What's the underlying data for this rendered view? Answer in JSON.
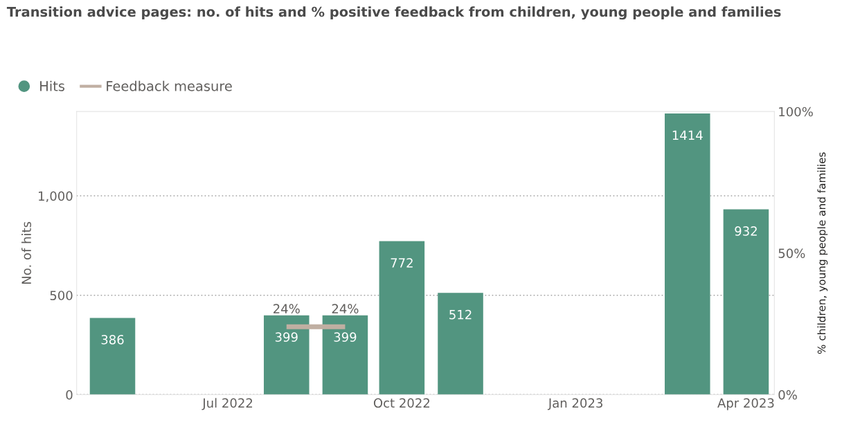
{
  "chart_data": {
    "type": "bar",
    "title": "Transition advice pages: no. of hits and % positive feedback from children, young people and families",
    "x": [
      "2022-05",
      "2022-08",
      "2022-09",
      "2022-10",
      "2022-11",
      "2023-03",
      "2023-04"
    ],
    "series": [
      {
        "name": "Hits",
        "color": "#529580",
        "values": [
          386,
          399,
          399,
          772,
          512,
          1414,
          932
        ],
        "value_labels": [
          "386",
          "399",
          "399",
          "772",
          "512",
          "1414",
          "932"
        ]
      },
      {
        "name": "Feedback measure",
        "type": "line",
        "axis": "y2",
        "color": "#c0afa2",
        "x": [
          "2022-08",
          "2022-09"
        ],
        "values": [
          24,
          24
        ],
        "value_labels": [
          "24%",
          "24%"
        ]
      }
    ],
    "xlim": [
      "2022-04-12",
      "2023-04-16"
    ],
    "xticks": [
      {
        "value": "2022-07",
        "label": "Jul 2022"
      },
      {
        "value": "2022-10",
        "label": "Oct 2022"
      },
      {
        "value": "2023-01",
        "label": "Jan 2023"
      },
      {
        "value": "2023-04",
        "label": "Apr 2023"
      }
    ],
    "ylim": [
      0,
      1424
    ],
    "yticks": [
      0,
      500,
      {
        "value": 1000,
        "label": "1,000"
      }
    ],
    "y2lim": [
      0,
      100
    ],
    "y2ticks": [
      {
        "value": 0,
        "label": "0%"
      },
      {
        "value": 50,
        "label": "50%"
      },
      {
        "value": 100,
        "label": "100%"
      }
    ],
    "ylabel": "No. of hits",
    "y2label": "% children, young people and families",
    "grid": "y",
    "legend": "top left",
    "marker": "none",
    "line_style": "solid"
  }
}
